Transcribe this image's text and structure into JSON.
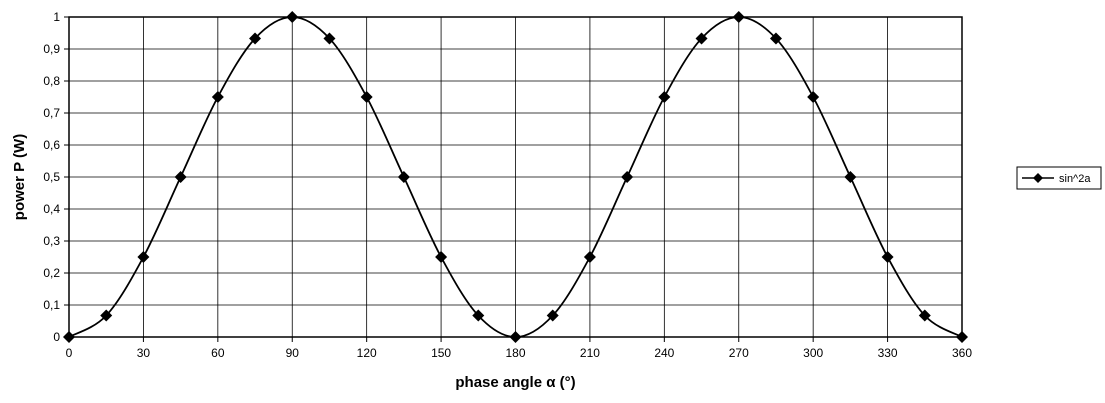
{
  "chart_data": {
    "type": "line",
    "title": "",
    "xlabel": "phase angle α (°)",
    "ylabel": "power P (W)",
    "xlim": [
      0,
      360
    ],
    "ylim": [
      0,
      1
    ],
    "grid": true,
    "legend_position": "right",
    "x_ticks": [
      0,
      30,
      60,
      90,
      120,
      150,
      180,
      210,
      240,
      270,
      300,
      330,
      360
    ],
    "x_tick_labels": [
      "0",
      "30",
      "60",
      "90",
      "120",
      "150",
      "180",
      "210",
      "240",
      "270",
      "300",
      "330",
      "360"
    ],
    "y_ticks": [
      0,
      0.1,
      0.2,
      0.3,
      0.4,
      0.5,
      0.6,
      0.7,
      0.8,
      0.9,
      1
    ],
    "y_tick_labels": [
      "0",
      "0,1",
      "0,2",
      "0,3",
      "0,4",
      "0,5",
      "0,6",
      "0,7",
      "0,8",
      "0,9",
      "1"
    ],
    "marker": "diamond",
    "line_color": "#000000",
    "series": [
      {
        "name": "sin^2a",
        "x": [
          0,
          15,
          30,
          45,
          60,
          75,
          90,
          105,
          120,
          135,
          150,
          165,
          180,
          195,
          210,
          225,
          240,
          255,
          270,
          285,
          300,
          315,
          330,
          345,
          360
        ],
        "y": [
          0,
          0.067,
          0.25,
          0.5,
          0.75,
          0.933,
          1,
          0.933,
          0.75,
          0.5,
          0.25,
          0.067,
          0,
          0.067,
          0.25,
          0.5,
          0.75,
          0.933,
          1,
          0.933,
          0.75,
          0.5,
          0.25,
          0.067,
          0
        ]
      }
    ]
  }
}
